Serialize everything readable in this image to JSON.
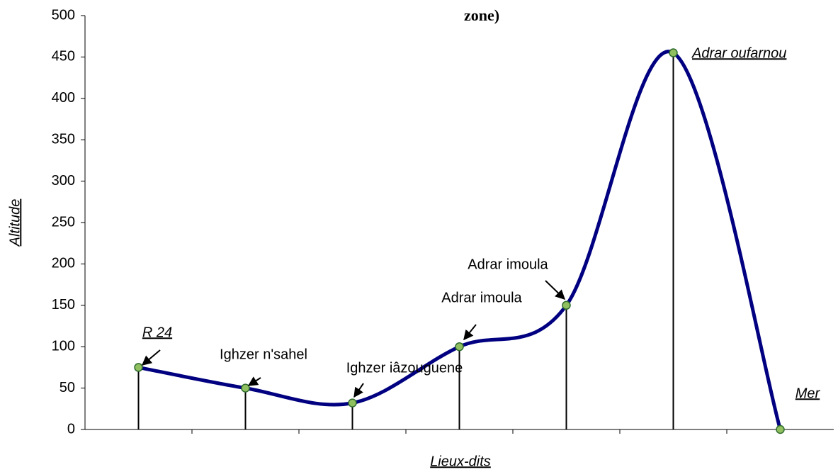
{
  "chart_data": {
    "type": "line",
    "title": "zone)",
    "xlabel": "Lieux-dits",
    "ylabel": "Altitude",
    "categories": [
      null,
      null,
      null,
      null,
      null,
      null,
      null
    ],
    "series": [
      {
        "name": null,
        "color": "#000080",
        "values": [
          75,
          50,
          32,
          100,
          150,
          455,
          0
        ]
      }
    ],
    "ylim": [
      0,
      500
    ],
    "yticks": [
      0,
      50,
      100,
      150,
      200,
      250,
      300,
      350,
      400,
      450,
      500
    ],
    "annotations": [
      "R 24",
      "Ighzer n'sahel",
      "Ighzer iâzouguene",
      "Adrar imoula",
      "Adrar imoula",
      "Adrar oufarnou",
      "Mer"
    ],
    "grid": false,
    "smooth": true
  }
}
